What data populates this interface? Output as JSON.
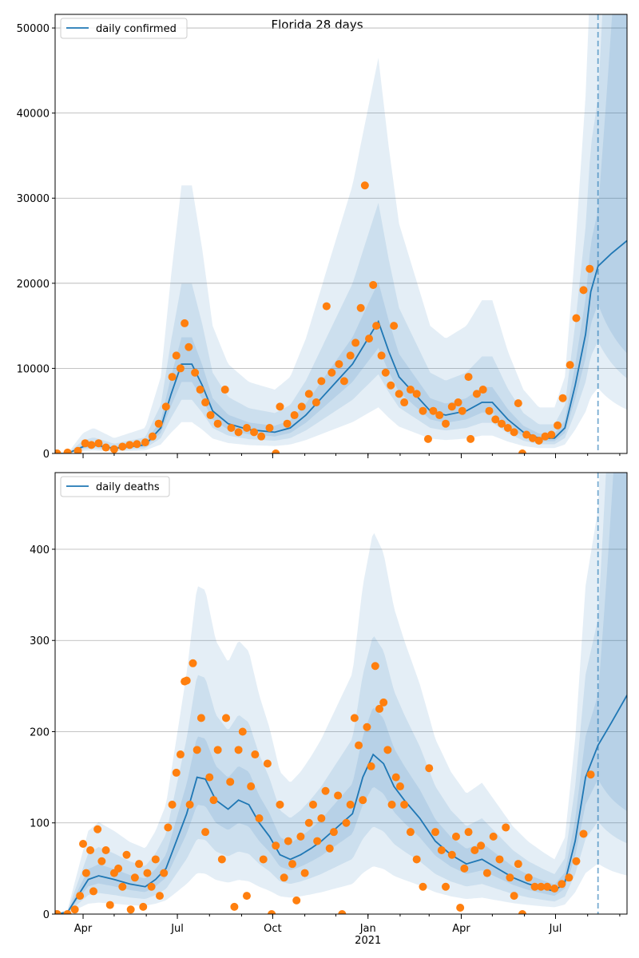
{
  "title": "Florida 28 days",
  "chart_data": [
    {
      "type": "line",
      "legend": "daily confirmed",
      "legend_position": "top-left",
      "ylim": [
        0,
        51600
      ],
      "yticks": [
        0,
        10000,
        20000,
        30000,
        40000,
        50000
      ],
      "xlim": [
        -27,
        525
      ],
      "x_unit": "days since 2020-04-01",
      "forecast_start": 497,
      "grid": "y",
      "xticks": [
        {
          "x": 0,
          "label": "Apr"
        },
        {
          "x": 91,
          "label": "Jul"
        },
        {
          "x": 183,
          "label": "Oct"
        },
        {
          "x": 275,
          "label": "Jan",
          "sub": "2021"
        },
        {
          "x": 365,
          "label": "Apr"
        },
        {
          "x": 456,
          "label": "Jul"
        }
      ],
      "median": [
        [
          -27,
          0
        ],
        [
          -15,
          0
        ],
        [
          0,
          800
        ],
        [
          10,
          1000
        ],
        [
          30,
          600
        ],
        [
          60,
          1000
        ],
        [
          75,
          3000
        ],
        [
          85,
          7000
        ],
        [
          95,
          10500
        ],
        [
          105,
          10500
        ],
        [
          115,
          8000
        ],
        [
          125,
          5000
        ],
        [
          140,
          3500
        ],
        [
          160,
          2800
        ],
        [
          185,
          2500
        ],
        [
          200,
          3000
        ],
        [
          215,
          4500
        ],
        [
          230,
          6500
        ],
        [
          245,
          8500
        ],
        [
          260,
          10500
        ],
        [
          275,
          13500
        ],
        [
          285,
          15500
        ],
        [
          295,
          12000
        ],
        [
          305,
          9000
        ],
        [
          320,
          7000
        ],
        [
          335,
          5000
        ],
        [
          350,
          4500
        ],
        [
          370,
          5000
        ],
        [
          385,
          6000
        ],
        [
          395,
          6000
        ],
        [
          410,
          4000
        ],
        [
          425,
          2500
        ],
        [
          440,
          1800
        ],
        [
          455,
          1800
        ],
        [
          465,
          3000
        ],
        [
          475,
          8000
        ],
        [
          485,
          14000
        ],
        [
          490,
          19000
        ],
        [
          497,
          22000
        ],
        [
          510,
          23500
        ],
        [
          525,
          25000
        ]
      ],
      "band_multipliers": [
        [
          0.8,
          1.3
        ],
        [
          0.6,
          1.9
        ],
        [
          0.35,
          3.0
        ]
      ],
      "observed": [
        [
          -25,
          0
        ],
        [
          -15,
          100
        ],
        [
          -5,
          300
        ],
        [
          2,
          1200
        ],
        [
          8,
          1000
        ],
        [
          15,
          1200
        ],
        [
          22,
          700
        ],
        [
          30,
          500
        ],
        [
          38,
          800
        ],
        [
          45,
          1000
        ],
        [
          52,
          1100
        ],
        [
          60,
          1300
        ],
        [
          67,
          2000
        ],
        [
          73,
          3500
        ],
        [
          80,
          5500
        ],
        [
          86,
          9000
        ],
        [
          90,
          11500
        ],
        [
          94,
          10000
        ],
        [
          98,
          15300
        ],
        [
          102,
          12500
        ],
        [
          108,
          9500
        ],
        [
          113,
          7500
        ],
        [
          118,
          6000
        ],
        [
          123,
          4500
        ],
        [
          130,
          3500
        ],
        [
          137,
          7500
        ],
        [
          143,
          3000
        ],
        [
          150,
          2500
        ],
        [
          158,
          3000
        ],
        [
          165,
          2500
        ],
        [
          172,
          2000
        ],
        [
          180,
          3000
        ],
        [
          186,
          0
        ],
        [
          190,
          5500
        ],
        [
          197,
          3500
        ],
        [
          204,
          4500
        ],
        [
          211,
          5500
        ],
        [
          218,
          7000
        ],
        [
          225,
          6000
        ],
        [
          230,
          8500
        ],
        [
          235,
          17300
        ],
        [
          240,
          9500
        ],
        [
          247,
          10500
        ],
        [
          252,
          8500
        ],
        [
          258,
          11500
        ],
        [
          263,
          13000
        ],
        [
          268,
          17100
        ],
        [
          272,
          31500
        ],
        [
          276,
          13500
        ],
        [
          280,
          19800
        ],
        [
          283,
          15000
        ],
        [
          288,
          11500
        ],
        [
          292,
          9500
        ],
        [
          297,
          8000
        ],
        [
          300,
          15000
        ],
        [
          305,
          7000
        ],
        [
          310,
          6000
        ],
        [
          316,
          7500
        ],
        [
          322,
          7000
        ],
        [
          328,
          5000
        ],
        [
          333,
          1700
        ],
        [
          338,
          5000
        ],
        [
          344,
          4500
        ],
        [
          350,
          3500
        ],
        [
          356,
          5500
        ],
        [
          362,
          6000
        ],
        [
          366,
          5000
        ],
        [
          372,
          9000
        ],
        [
          374,
          1700
        ],
        [
          380,
          7000
        ],
        [
          386,
          7500
        ],
        [
          392,
          5000
        ],
        [
          398,
          4000
        ],
        [
          404,
          3500
        ],
        [
          410,
          3000
        ],
        [
          416,
          2500
        ],
        [
          420,
          5900
        ],
        [
          424,
          0
        ],
        [
          428,
          2200
        ],
        [
          434,
          1800
        ],
        [
          440,
          1500
        ],
        [
          446,
          2000
        ],
        [
          452,
          2200
        ],
        [
          458,
          3300
        ],
        [
          463,
          6500
        ],
        [
          470,
          10400
        ],
        [
          476,
          15900
        ],
        [
          483,
          19200
        ],
        [
          489,
          21700
        ]
      ]
    },
    {
      "type": "line",
      "legend": "daily deaths",
      "legend_position": "top-left",
      "ylim": [
        0,
        484
      ],
      "yticks": [
        0,
        100,
        200,
        300,
        400
      ],
      "xlim": [
        -27,
        525
      ],
      "x_unit": "days since 2020-04-01",
      "forecast_start": 497,
      "grid": "y",
      "xticks": [
        {
          "x": 0,
          "label": "Apr"
        },
        {
          "x": 91,
          "label": "Jul"
        },
        {
          "x": 183,
          "label": "Oct"
        },
        {
          "x": 275,
          "label": "Jan",
          "sub": "2021"
        },
        {
          "x": 365,
          "label": "Apr"
        },
        {
          "x": 456,
          "label": "Jul"
        }
      ],
      "median": [
        [
          -27,
          0
        ],
        [
          -15,
          2
        ],
        [
          -5,
          20
        ],
        [
          5,
          38
        ],
        [
          15,
          42
        ],
        [
          30,
          38
        ],
        [
          45,
          33
        ],
        [
          60,
          30
        ],
        [
          70,
          38
        ],
        [
          80,
          50
        ],
        [
          90,
          80
        ],
        [
          100,
          110
        ],
        [
          110,
          150
        ],
        [
          118,
          148
        ],
        [
          128,
          125
        ],
        [
          140,
          115
        ],
        [
          150,
          125
        ],
        [
          160,
          120
        ],
        [
          170,
          100
        ],
        [
          180,
          85
        ],
        [
          190,
          65
        ],
        [
          200,
          60
        ],
        [
          210,
          65
        ],
        [
          220,
          72
        ],
        [
          230,
          80
        ],
        [
          245,
          95
        ],
        [
          260,
          110
        ],
        [
          270,
          150
        ],
        [
          280,
          175
        ],
        [
          290,
          165
        ],
        [
          300,
          140
        ],
        [
          310,
          125
        ],
        [
          325,
          105
        ],
        [
          340,
          80
        ],
        [
          355,
          65
        ],
        [
          370,
          55
        ],
        [
          385,
          60
        ],
        [
          400,
          50
        ],
        [
          415,
          40
        ],
        [
          430,
          33
        ],
        [
          445,
          28
        ],
        [
          455,
          25
        ],
        [
          465,
          35
        ],
        [
          475,
          80
        ],
        [
          485,
          150
        ],
        [
          497,
          185
        ],
        [
          510,
          210
        ],
        [
          525,
          240
        ]
      ],
      "band_multipliers": [
        [
          0.8,
          1.3
        ],
        [
          0.55,
          1.75
        ],
        [
          0.3,
          2.4
        ]
      ],
      "observed": [
        [
          -25,
          0
        ],
        [
          -15,
          0
        ],
        [
          -8,
          5
        ],
        [
          -3,
          20
        ],
        [
          0,
          77
        ],
        [
          3,
          45
        ],
        [
          7,
          70
        ],
        [
          10,
          25
        ],
        [
          14,
          93
        ],
        [
          18,
          58
        ],
        [
          22,
          70
        ],
        [
          26,
          10
        ],
        [
          30,
          45
        ],
        [
          34,
          50
        ],
        [
          38,
          30
        ],
        [
          42,
          65
        ],
        [
          46,
          5
        ],
        [
          50,
          40
        ],
        [
          54,
          55
        ],
        [
          58,
          8
        ],
        [
          62,
          45
        ],
        [
          66,
          30
        ],
        [
          70,
          60
        ],
        [
          74,
          20
        ],
        [
          78,
          45
        ],
        [
          82,
          95
        ],
        [
          86,
          120
        ],
        [
          90,
          155
        ],
        [
          94,
          175
        ],
        [
          98,
          255
        ],
        [
          100,
          256
        ],
        [
          103,
          120
        ],
        [
          106,
          275
        ],
        [
          110,
          180
        ],
        [
          114,
          215
        ],
        [
          118,
          90
        ],
        [
          122,
          150
        ],
        [
          126,
          125
        ],
        [
          130,
          180
        ],
        [
          134,
          60
        ],
        [
          138,
          215
        ],
        [
          142,
          145
        ],
        [
          146,
          8
        ],
        [
          150,
          180
        ],
        [
          154,
          200
        ],
        [
          158,
          20
        ],
        [
          162,
          140
        ],
        [
          166,
          175
        ],
        [
          170,
          105
        ],
        [
          174,
          60
        ],
        [
          178,
          165
        ],
        [
          182,
          0
        ],
        [
          186,
          75
        ],
        [
          190,
          120
        ],
        [
          194,
          40
        ],
        [
          198,
          80
        ],
        [
          202,
          55
        ],
        [
          206,
          15
        ],
        [
          210,
          85
        ],
        [
          214,
          45
        ],
        [
          218,
          100
        ],
        [
          222,
          120
        ],
        [
          226,
          80
        ],
        [
          230,
          105
        ],
        [
          234,
          135
        ],
        [
          238,
          72
        ],
        [
          242,
          90
        ],
        [
          246,
          130
        ],
        [
          250,
          0
        ],
        [
          254,
          100
        ],
        [
          258,
          120
        ],
        [
          262,
          215
        ],
        [
          266,
          185
        ],
        [
          270,
          125
        ],
        [
          274,
          205
        ],
        [
          278,
          162
        ],
        [
          282,
          272
        ],
        [
          286,
          225
        ],
        [
          290,
          232
        ],
        [
          294,
          180
        ],
        [
          298,
          120
        ],
        [
          302,
          150
        ],
        [
          306,
          140
        ],
        [
          310,
          120
        ],
        [
          316,
          90
        ],
        [
          322,
          60
        ],
        [
          328,
          30
        ],
        [
          334,
          160
        ],
        [
          340,
          90
        ],
        [
          346,
          70
        ],
        [
          350,
          30
        ],
        [
          356,
          65
        ],
        [
          360,
          85
        ],
        [
          364,
          7
        ],
        [
          368,
          50
        ],
        [
          372,
          90
        ],
        [
          378,
          70
        ],
        [
          384,
          75
        ],
        [
          390,
          45
        ],
        [
          396,
          85
        ],
        [
          402,
          60
        ],
        [
          408,
          95
        ],
        [
          412,
          40
        ],
        [
          416,
          20
        ],
        [
          420,
          55
        ],
        [
          424,
          0
        ],
        [
          430,
          40
        ],
        [
          436,
          30
        ],
        [
          442,
          30
        ],
        [
          448,
          30
        ],
        [
          455,
          28
        ],
        [
          462,
          33
        ],
        [
          469,
          40
        ],
        [
          476,
          58
        ],
        [
          483,
          88
        ],
        [
          490,
          153
        ]
      ]
    }
  ],
  "colors": {
    "line": "#1f77b4",
    "points": "#ff7f0e",
    "band": "#1f77b4",
    "grid": "#b0b0b0"
  }
}
